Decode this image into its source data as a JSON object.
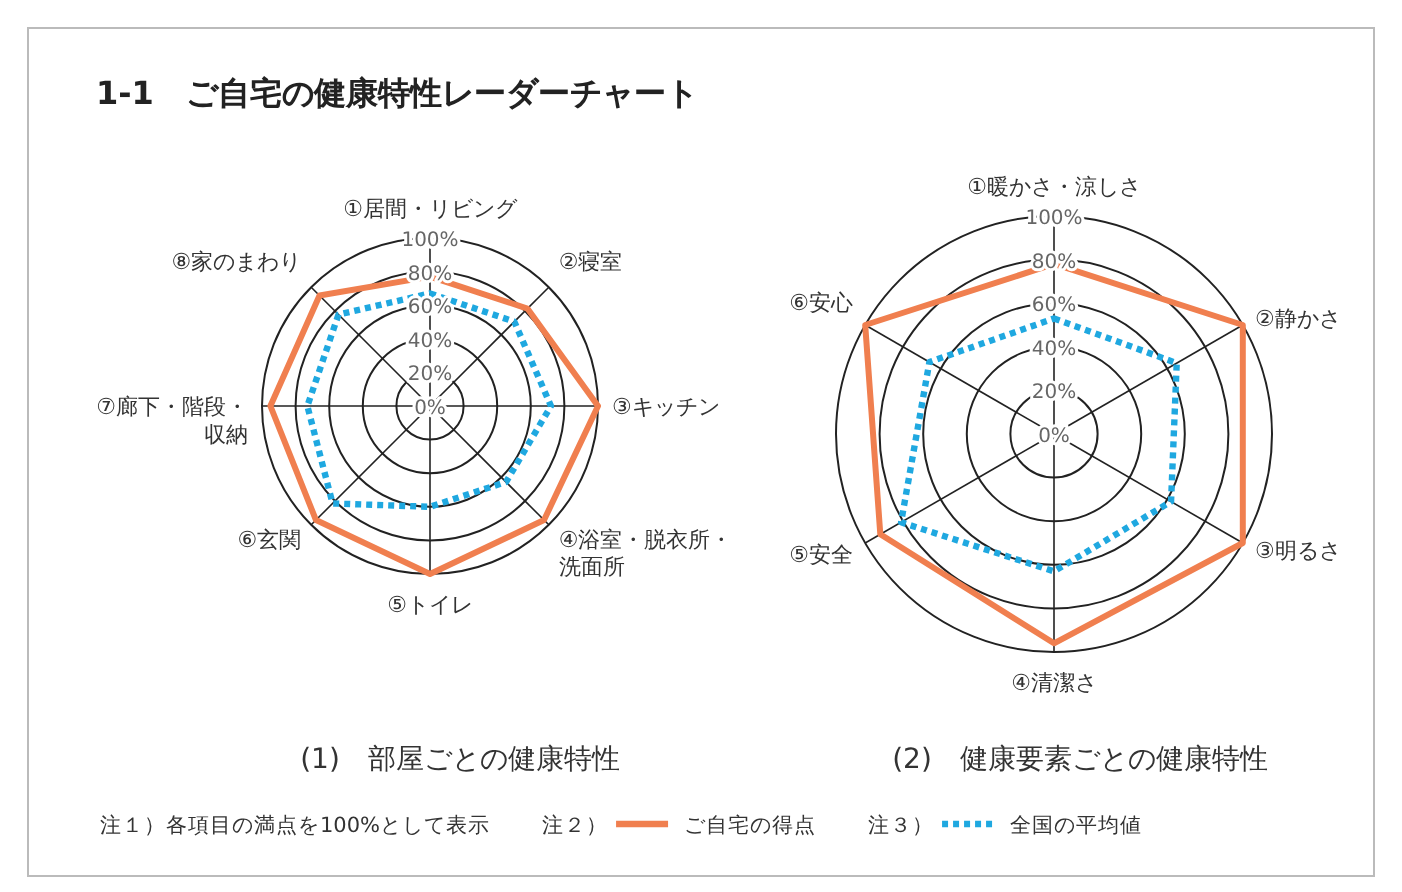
{
  "chart_data": [
    {
      "type": "radar",
      "title": "1-1　ご自宅の健康特性レーダーチャート",
      "xlabel": "(1)　部屋ごとの健康特性",
      "categories": [
        "①居間・リビング",
        "②寝室",
        "③キッチン",
        "④浴室・脱衣所・洗面所",
        "⑤トイレ",
        "⑥玄関",
        "⑦廊下・階段・収納",
        "⑧家のまわり"
      ],
      "series": [
        {
          "name": "ご自宅の得点",
          "color": "#f07f4f",
          "line_style": "solid",
          "values": [
            77,
            82,
            100,
            96,
            100,
            96,
            95,
            93
          ]
        },
        {
          "name": "全国の平均値",
          "color": "#1fa8e0",
          "line_style": "dotted",
          "values": [
            67,
            71,
            72,
            64,
            60,
            82,
            73,
            77
          ]
        }
      ],
      "ylim": [
        0,
        100
      ],
      "yticks": [
        {
          "value": 0,
          "label": "0%"
        },
        {
          "value": 20,
          "label": "20%"
        },
        {
          "value": 40,
          "label": "40%"
        },
        {
          "value": 60,
          "label": "60%"
        },
        {
          "value": 80,
          "label": "80%"
        },
        {
          "value": 100,
          "label": "100%"
        }
      ],
      "legend": "bottom",
      "annotations": [
        "注１）各項目の満点を100%として表示",
        "注２）",
        "注３）"
      ]
    },
    {
      "type": "radar",
      "xlabel": "(2)　健康要素ごとの健康特性",
      "categories": [
        "①暖かさ・涼しさ",
        "②静かさ",
        "③明るさ",
        "④清潔さ",
        "⑤安全",
        "⑥安心"
      ],
      "series": [
        {
          "color": "#f07f4f",
          "line_style": "solid",
          "values": [
            78,
            100,
            100,
            96,
            92,
            100
          ]
        },
        {
          "color": "#1fa8e0",
          "line_style": "dotted",
          "values": [
            53,
            65,
            62,
            63,
            81,
            66
          ]
        }
      ],
      "ylim": [
        0,
        100
      ],
      "yticks": [
        {
          "value": 0,
          "label": "0%"
        },
        {
          "value": 20,
          "label": "20%"
        },
        {
          "value": 40,
          "label": "40%"
        },
        {
          "value": 60,
          "label": "60%"
        },
        {
          "value": 80,
          "label": "80%"
        },
        {
          "value": 100,
          "label": "100%"
        }
      ]
    }
  ]
}
